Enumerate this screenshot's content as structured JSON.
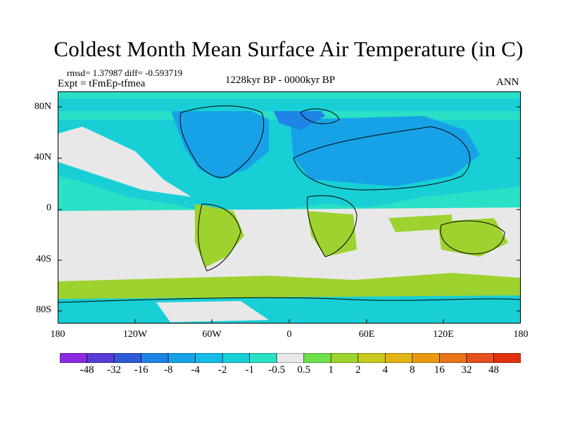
{
  "title": "Coldest Month Mean Surface Air Temperature (in C)",
  "stats": "rmsd= 1.37987 diff= -0.593719",
  "experiment": "Expt = tFmEp-tfmea",
  "period": "1228kyr BP - 0000kyr BP",
  "season": "ANN",
  "lat_labels": [
    "80N",
    "40N",
    "0",
    "40S",
    "80S"
  ],
  "lon_labels": [
    "180",
    "120W",
    "60W",
    "0",
    "60E",
    "120E",
    "180"
  ],
  "colorbar": {
    "labels": [
      "-48",
      "-32",
      "-16",
      "-8",
      "-4",
      "-2",
      "-1",
      "-0.5",
      "0.5",
      "1",
      "2",
      "4",
      "8",
      "16",
      "32",
      "48"
    ],
    "colors": [
      "#8a2be2",
      "#5a3ad6",
      "#2f5ad6",
      "#1e84e6",
      "#17a2e8",
      "#16bbe6",
      "#18cfd6",
      "#2ae0c6",
      "#e8e8e8",
      "#6ee04a",
      "#9ed22f",
      "#c8c81e",
      "#e0b412",
      "#e89a0e",
      "#e8741a",
      "#e4501e",
      "#e2300e"
    ]
  },
  "colors": {
    "neutral": "#e8e8e8",
    "cyan": "#18cfd6",
    "teal": "#2ae0c6",
    "blue": "#17a2e8",
    "deep_blue": "#1e84e6",
    "green": "#9ed22f",
    "lime": "#6ee04a",
    "yellow": "#c8c81e"
  }
}
